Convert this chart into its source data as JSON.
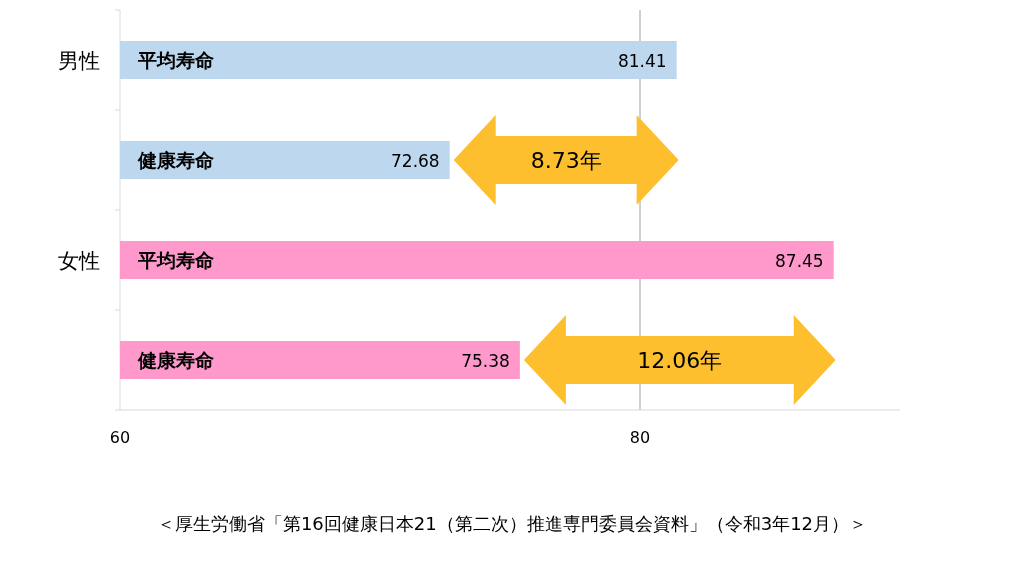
{
  "chart_data": {
    "type": "bar",
    "orientation": "horizontal",
    "categories": [
      "平均寿命",
      "健康寿命",
      "平均寿命",
      "健康寿命"
    ],
    "values": [
      81.41,
      72.68,
      87.45,
      75.38
    ],
    "colors": [
      "#bdd7ee",
      "#bdd7ee",
      "#ff99cc",
      "#ff99cc"
    ],
    "data_labels": true,
    "xlim": [
      60,
      90
    ],
    "xticks": [
      60,
      80
    ],
    "grid": "x",
    "annotations": [
      "男性",
      "女性",
      "8.73年",
      "12.06年",
      "＜厚生労働省「第16回健康日本21（第二次）推進専門委員会資料」（令和3年12月）＞"
    ]
  }
}
